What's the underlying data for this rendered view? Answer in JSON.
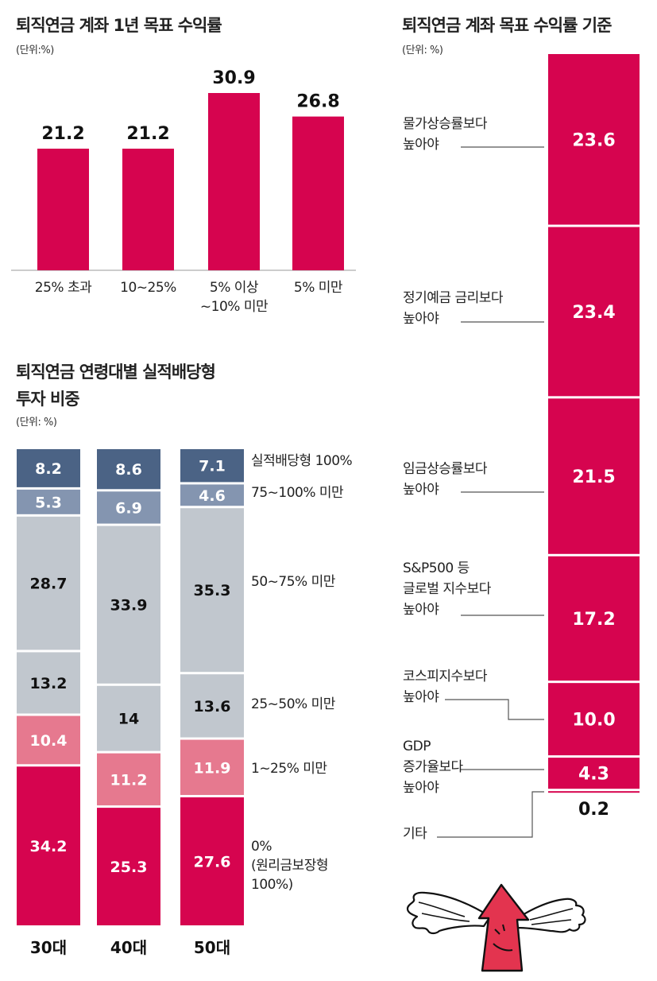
{
  "colors": {
    "crimson": "#d6044f",
    "pink": "#e6798f",
    "lightgray": "#c1c7ce",
    "steel": "#8495b0",
    "navy": "#4b6385",
    "text": "#222222"
  },
  "chart_data": [
    {
      "type": "bar",
      "title": "퇴직연금 계좌 1년 목표 수익률",
      "unit": "(단위:%)",
      "categories": [
        "25% 초과",
        "10~25%",
        "5% 이상\n~10% 미만",
        "5% 미만"
      ],
      "values": [
        21.2,
        21.2,
        30.9,
        26.8
      ],
      "value_labels": [
        "21.2",
        "21.2",
        "30.9",
        "26.8"
      ],
      "ylim": [
        0,
        30.9
      ]
    },
    {
      "type": "bar",
      "stacked": true,
      "title": "퇴직연금 연령대별 실적배당형\n투자 비중",
      "unit": "(단위: %)",
      "categories": [
        "30대",
        "40대",
        "50대"
      ],
      "series": [
        {
          "name": "0%\n(원리금보장형\n100%)",
          "values": [
            34.2,
            25.3,
            27.6
          ],
          "labels": [
            "34.2",
            "25.3",
            "27.6"
          ],
          "color": "#d6044f",
          "text_color": "#ffffff"
        },
        {
          "name": "1~25% 미만",
          "values": [
            10.4,
            11.2,
            11.9
          ],
          "labels": [
            "10.4",
            "11.2",
            "11.9"
          ],
          "color": "#e6798f",
          "text_color": "#ffffff"
        },
        {
          "name": "25~50% 미만",
          "values": [
            13.2,
            14,
            13.6
          ],
          "labels": [
            "13.2",
            "14",
            "13.6"
          ],
          "color": "#c1c7ce",
          "text_color": "#111111"
        },
        {
          "name": "50~75% 미만",
          "values": [
            28.7,
            33.9,
            35.3
          ],
          "labels": [
            "28.7",
            "33.9",
            "35.3"
          ],
          "color": "#c1c7ce",
          "text_color": "#111111"
        },
        {
          "name": "75~100% 미만",
          "values": [
            5.3,
            6.9,
            4.6
          ],
          "labels": [
            "5.3",
            "6.9",
            "4.6"
          ],
          "color": "#8495b0",
          "text_color": "#ffffff"
        },
        {
          "name": "실적배당형 100%",
          "values": [
            8.2,
            8.6,
            7.1
          ],
          "labels": [
            "8.2",
            "8.6",
            "7.1"
          ],
          "color": "#4b6385",
          "text_color": "#ffffff"
        }
      ]
    },
    {
      "type": "bar",
      "stacked": true,
      "title": "퇴직연금 계좌 목표 수익률 기준",
      "unit": "(단위: %)",
      "segments": [
        {
          "label": "물가상승률보다\n높아야",
          "value": 23.6,
          "value_label": "23.6"
        },
        {
          "label": "정기예금 금리보다\n높아야",
          "value": 23.4,
          "value_label": "23.4"
        },
        {
          "label": "임금상승률보다\n높아야",
          "value": 21.5,
          "value_label": "21.5"
        },
        {
          "label": "S&P500 등\n글로벌 지수보다\n높아야",
          "value": 17.2,
          "value_label": "17.2"
        },
        {
          "label": "코스피지수보다\n높아야",
          "value": 10.0,
          "value_label": "10.0"
        },
        {
          "label": "GDP\n증가율보다\n높아야",
          "value": 4.3,
          "value_label": "4.3"
        },
        {
          "label": "기타",
          "value": 0.2,
          "value_label": "0.2"
        }
      ]
    }
  ]
}
